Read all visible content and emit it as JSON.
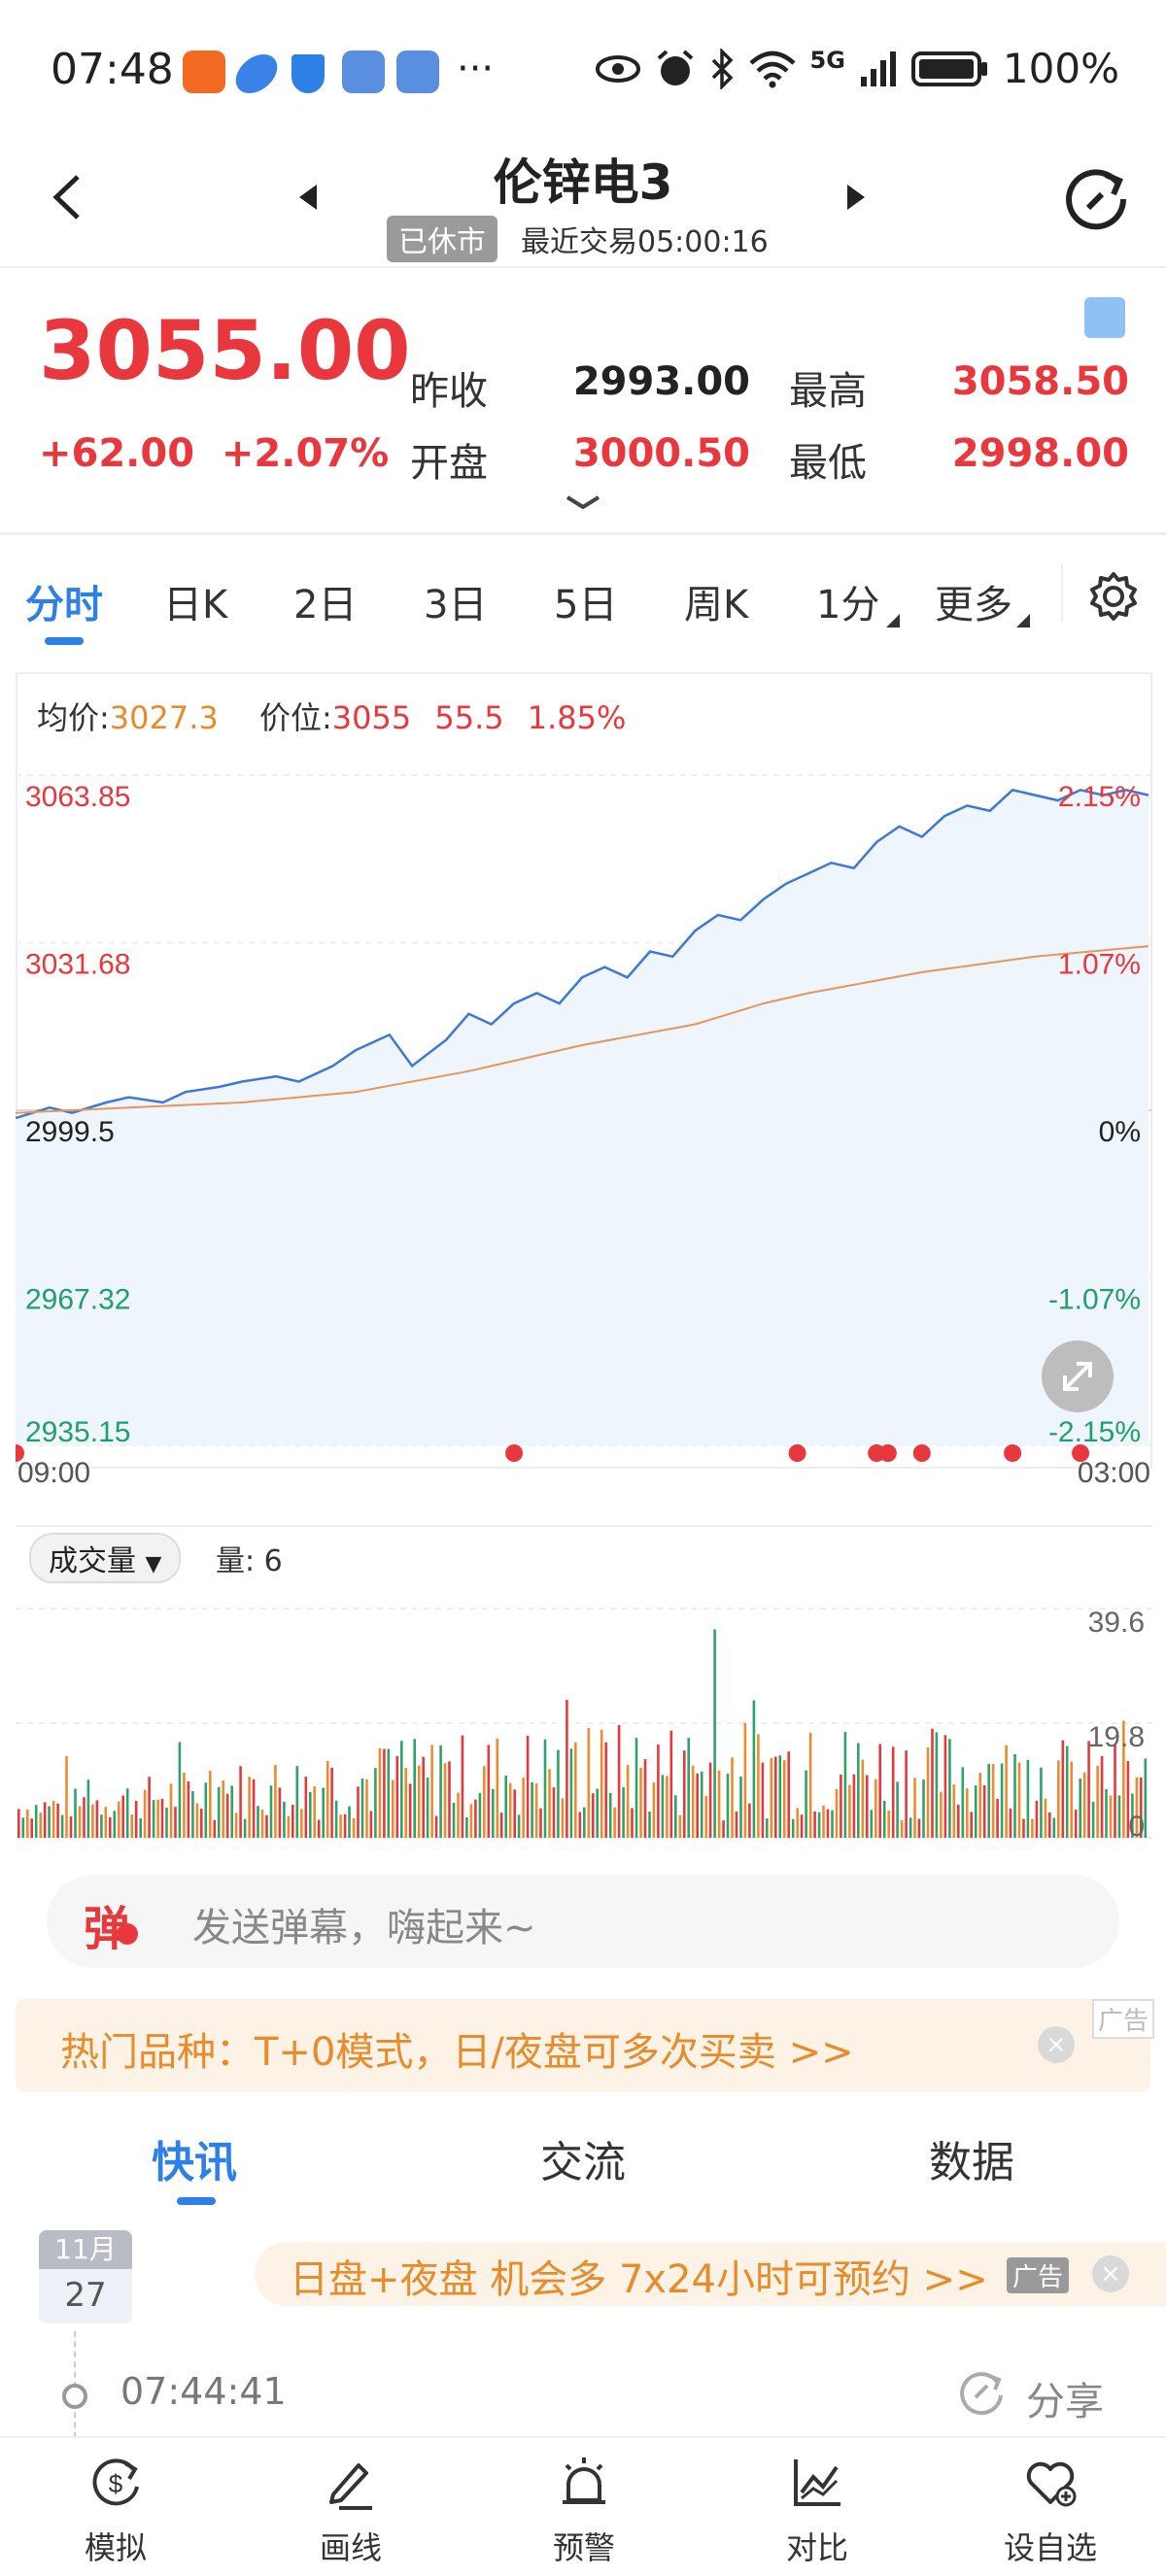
{
  "statusbar": {
    "time": "07:48",
    "more": "···",
    "network": "5G",
    "battery": "100%",
    "icons": [
      "eye-icon",
      "alarm-icon",
      "bluetooth-icon",
      "wifi-icon",
      "signal-icon",
      "battery-icon"
    ]
  },
  "header": {
    "title": "伦锌电3",
    "market_status": "已休市",
    "last_trade": "最近交易05:00:16"
  },
  "quote": {
    "price": "3055.00",
    "change": "+62.00",
    "change_pct": "+2.07%",
    "prev_close_label": "昨收",
    "prev_close": "2993.00",
    "open_label": "开盘",
    "open": "3000.50",
    "high_label": "最高",
    "high": "3058.50",
    "low_label": "最低",
    "low": "2998.00"
  },
  "tabs": [
    "分时",
    "日K",
    "2日",
    "3日",
    "5日",
    "周K",
    "1分",
    "更多"
  ],
  "chart_header": {
    "avg_label": "均价:",
    "avg_value": "3027.3",
    "pos_label": "价位:",
    "pos_price": "3055",
    "pos_change": "55.5",
    "pos_pct": "1.85%"
  },
  "chart_data": {
    "type": "line",
    "title": "",
    "xlabel": "",
    "ylabel": "",
    "x_ticks": [
      "09:00",
      "03:00"
    ],
    "y_left_ticks": [
      "3063.85",
      "3031.68",
      "2999.5",
      "2967.32",
      "2935.15"
    ],
    "y_right_ticks": [
      "2.15%",
      "1.07%",
      "0%",
      "-1.07%",
      "-2.15%"
    ],
    "ylim": [
      2935.15,
      3063.85
    ],
    "x_range": [
      0,
      100
    ],
    "series": [
      {
        "color": "#3d78d8",
        "x": [
          0,
          3,
          5,
          8,
          10,
          13,
          15,
          18,
          20,
          23,
          25,
          28,
          30,
          33,
          35,
          38,
          40,
          42,
          44,
          46,
          48,
          50,
          52,
          54,
          56,
          58,
          60,
          62,
          64,
          66,
          68,
          70,
          72,
          74,
          76,
          78,
          80,
          82,
          84,
          86,
          88,
          90,
          92,
          94,
          96,
          98,
          100
        ],
        "values": [
          2998,
          3000,
          2999,
          3001,
          3002,
          3001,
          3003,
          3004,
          3005,
          3006,
          3005,
          3008,
          3011,
          3014,
          3008,
          3013,
          3018,
          3016,
          3020,
          3022,
          3020,
          3025,
          3027,
          3025,
          3030,
          3029,
          3034,
          3037,
          3036,
          3040,
          3043,
          3045,
          3047,
          3046,
          3051,
          3054,
          3052,
          3056,
          3058,
          3057,
          3061,
          3060,
          3059,
          3061,
          3060,
          3061,
          3060
        ]
      },
      {
        "color": "#e8955a",
        "x": [
          0,
          10,
          20,
          30,
          40,
          50,
          60,
          66,
          70,
          80,
          90,
          100
        ],
        "values": [
          2999,
          3000,
          3001,
          3003,
          3007,
          3012,
          3016,
          3020,
          3022,
          3026,
          3029,
          3031
        ]
      }
    ],
    "markers_x": [
      0,
      44,
      69,
      76,
      77,
      80,
      88,
      94
    ]
  },
  "volume": {
    "selector": "成交量",
    "label": "量: 6",
    "y_ticks": [
      "39.6",
      "19.8",
      "0"
    ],
    "ylim": [
      0,
      39.6
    ]
  },
  "danmaku": {
    "icon_text": "弹",
    "placeholder": "发送弹幕，嗨起来~"
  },
  "ad_banner": {
    "text": "热门品种：T+0模式，日/夜盘可多次买卖 >>",
    "tag": "广告",
    "close": "×"
  },
  "news_tabs": [
    "快讯",
    "交流",
    "数据"
  ],
  "news": {
    "month": "11月",
    "day": "27",
    "ad_text": "日盘+夜盘 机会多 7x24小时可预约 >>",
    "ad_tag": "广告",
    "ad_close": "×",
    "time": "07:44:41",
    "share": "分享"
  },
  "bottom_nav": [
    "模拟",
    "画线",
    "预警",
    "对比",
    "设自选"
  ]
}
